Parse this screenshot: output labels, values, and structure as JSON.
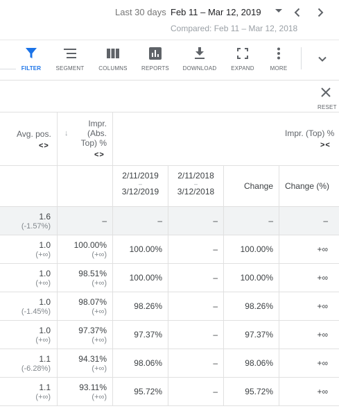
{
  "date_bar": {
    "label": "Last 30 days",
    "range": "Feb 11 – Mar 12, 2019",
    "compared": "Compared: Feb 11 – Mar 12, 2018"
  },
  "toolbar": {
    "items": [
      {
        "label": "FILTER",
        "icon": "filter-icon",
        "active": true
      },
      {
        "label": "SEGMENT",
        "icon": "segment-icon"
      },
      {
        "label": "COLUMNS",
        "icon": "columns-icon"
      },
      {
        "label": "REPORTS",
        "icon": "reports-icon"
      },
      {
        "label": "DOWNLOAD",
        "icon": "download-icon"
      },
      {
        "label": "EXPAND",
        "icon": "expand-icon"
      },
      {
        "label": "MORE",
        "icon": "more-vert-icon"
      }
    ],
    "accent": "#1a73e8"
  },
  "reset": {
    "label": "RESET"
  },
  "table": {
    "headers": {
      "avg_pos": "Avg. pos.",
      "impr_abs_top_line1": "Impr.",
      "impr_abs_top_line2": "(Abs.",
      "impr_abs_top_line3": "Top) %",
      "impr_top": "Impr. (Top) %",
      "sort_arrows": "<>",
      "collapse_arrows": "><",
      "sort_down": "↓"
    },
    "subheaders": {
      "current_start": "2/11/2019",
      "current_end": "3/12/2019",
      "compare_start": "2/11/2018",
      "compare_end": "3/12/2018",
      "dash": "–",
      "change": "Change",
      "change_pct": "Change (%)"
    },
    "total_row": {
      "avg_pos": "1.6",
      "avg_pos_change": "(-1.57%)",
      "abs_top": "–",
      "current": "–",
      "compare": "–",
      "change": "–",
      "change_pct": "–"
    },
    "rows": [
      {
        "avg_pos": "1.0",
        "avg_pos_change": "(+∞)",
        "abs_top": "100.00%",
        "abs_top_change": "(+∞)",
        "current": "100.00%",
        "compare": "–",
        "change": "100.00%",
        "change_pct": "+∞"
      },
      {
        "avg_pos": "1.0",
        "avg_pos_change": "(+∞)",
        "abs_top": "98.51%",
        "abs_top_change": "(+∞)",
        "current": "100.00%",
        "compare": "–",
        "change": "100.00%",
        "change_pct": "+∞"
      },
      {
        "avg_pos": "1.0",
        "avg_pos_change": "(-1.45%)",
        "abs_top": "98.07%",
        "abs_top_change": "(+∞)",
        "current": "98.26%",
        "compare": "–",
        "change": "98.26%",
        "change_pct": "+∞"
      },
      {
        "avg_pos": "1.0",
        "avg_pos_change": "(+∞)",
        "abs_top": "97.37%",
        "abs_top_change": "(+∞)",
        "current": "97.37%",
        "compare": "–",
        "change": "97.37%",
        "change_pct": "+∞"
      },
      {
        "avg_pos": "1.1",
        "avg_pos_change": "(-6.28%)",
        "abs_top": "94.31%",
        "abs_top_change": "(+∞)",
        "current": "98.06%",
        "compare": "–",
        "change": "98.06%",
        "change_pct": "+∞"
      },
      {
        "avg_pos": "1.1",
        "avg_pos_change": "(+∞)",
        "abs_top": "93.11%",
        "abs_top_change": "(+∞)",
        "current": "95.72%",
        "compare": "–",
        "change": "95.72%",
        "change_pct": "+∞"
      }
    ]
  }
}
